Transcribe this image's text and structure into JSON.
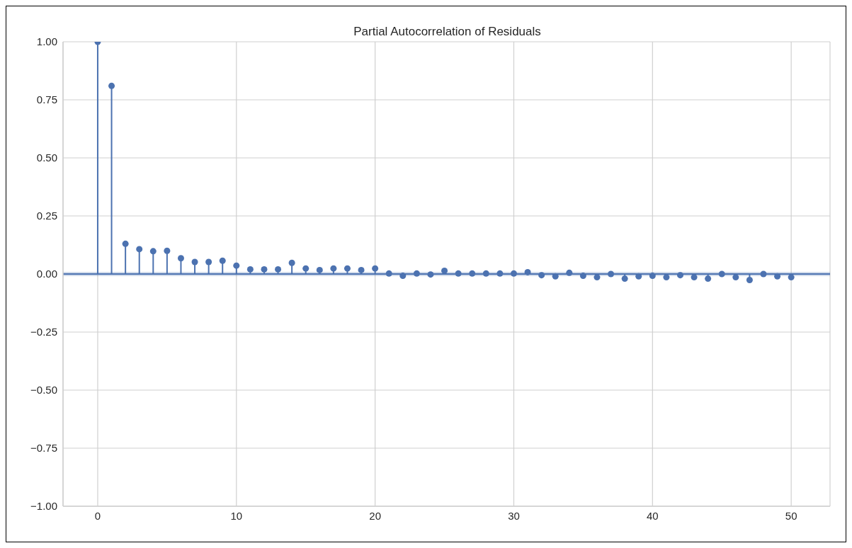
{
  "chart_data": {
    "type": "lollipop",
    "title": "Partial Autocorrelation of Residuals",
    "x": [
      0,
      1,
      2,
      3,
      4,
      5,
      6,
      7,
      8,
      9,
      10,
      11,
      12,
      13,
      14,
      15,
      16,
      17,
      18,
      19,
      20,
      21,
      22,
      23,
      24,
      25,
      26,
      27,
      28,
      29,
      30,
      31,
      32,
      33,
      34,
      35,
      36,
      37,
      38,
      39,
      40,
      41,
      42,
      43,
      44,
      45,
      46,
      47,
      48,
      49,
      50
    ],
    "series": [
      {
        "color": "#4c72b0",
        "values": [
          1.0,
          0.81,
          0.13,
          0.107,
          0.098,
          0.1,
          0.068,
          0.052,
          0.052,
          0.057,
          0.036,
          0.02,
          0.02,
          0.02,
          0.048,
          0.024,
          0.017,
          0.024,
          0.024,
          0.017,
          0.024,
          0.002,
          -0.008,
          0.002,
          -0.002,
          0.014,
          0.002,
          0.002,
          0.002,
          0.002,
          0.002,
          0.008,
          -0.005,
          -0.01,
          0.005,
          -0.008,
          -0.014,
          0.0,
          -0.02,
          -0.01,
          -0.008,
          -0.014,
          -0.005,
          -0.014,
          -0.02,
          0.0,
          -0.014,
          -0.026,
          0.0,
          -0.01,
          -0.014
        ]
      }
    ],
    "xlim": [
      -2.5,
      52.8
    ],
    "xticks": [
      0,
      10,
      20,
      30,
      40,
      50
    ],
    "ylim": [
      -1,
      1
    ],
    "yticks": [
      {
        "value": -1,
        "label": "−1.00"
      },
      {
        "value": -0.75,
        "label": "−0.75"
      },
      {
        "value": -0.5,
        "label": "−0.50"
      },
      {
        "value": -0.25,
        "label": "−0.25"
      },
      {
        "value": 0,
        "label": "0.00"
      },
      {
        "value": 0.25,
        "label": "0.25"
      },
      {
        "value": 0.5,
        "label": "0.50"
      },
      {
        "value": 0.75,
        "label": "0.75"
      },
      {
        "value": 1,
        "label": "1.00"
      }
    ],
    "ref_lines": [
      {
        "axis": "y",
        "value": 0,
        "color": "#4c72b0"
      }
    ],
    "bands": [
      {
        "axis": "y",
        "from": -0.009,
        "to": 0.009,
        "color": "#4c72b0"
      }
    ],
    "grid": true,
    "marker": "circle"
  }
}
